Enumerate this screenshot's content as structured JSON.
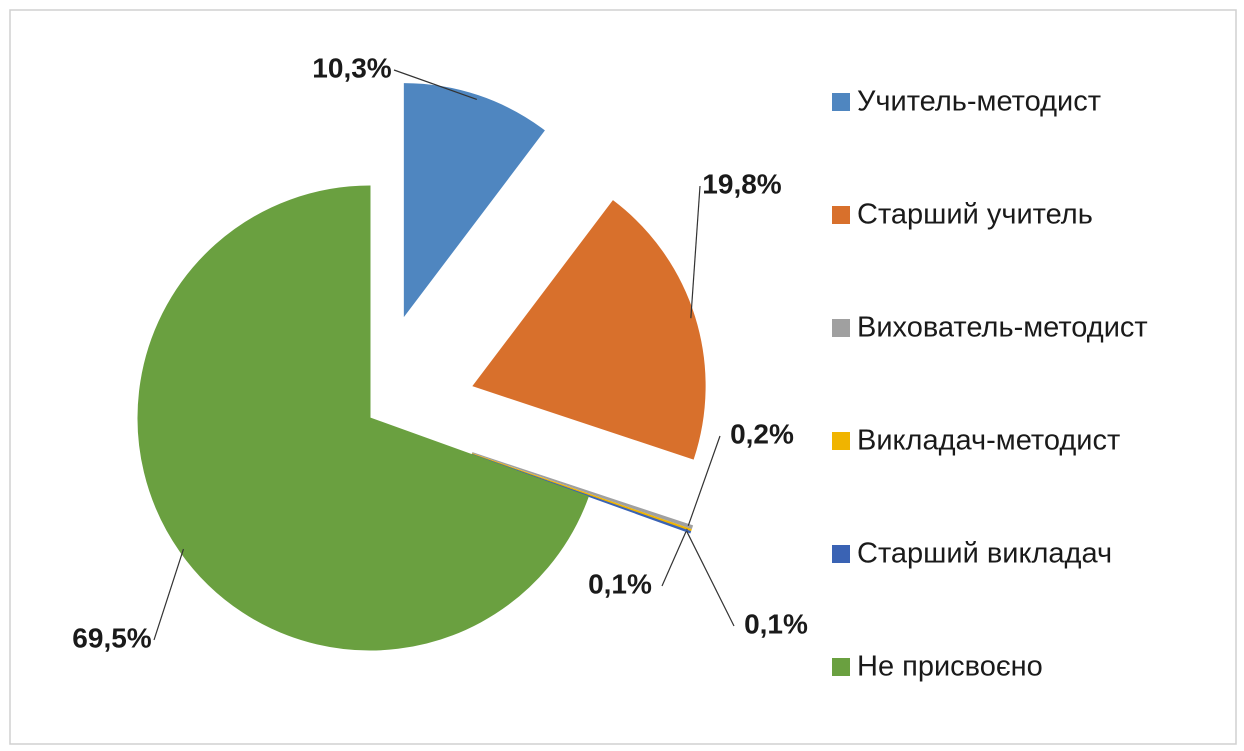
{
  "chart_data": {
    "type": "pie",
    "categories": [
      "Учитель-методист",
      "Старший учитель",
      "Вихователь-методист",
      "Викладач-методист",
      "Старший викладач",
      "Не присвоєно"
    ],
    "values": [
      10.3,
      19.8,
      0.2,
      0.1,
      0.1,
      69.5
    ],
    "value_labels": [
      "10,3%",
      "19,8%",
      "0,2%",
      "0,1%",
      "0,1%",
      "69,5%"
    ],
    "colors": [
      "#4f86c0",
      "#d8702c",
      "#a0a0a0",
      "#f0b400",
      "#3a63b4",
      "#6aa040"
    ],
    "legend": "right"
  }
}
